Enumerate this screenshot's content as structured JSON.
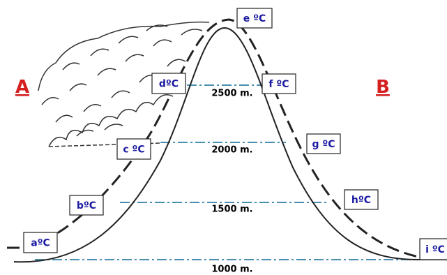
{
  "sides": {
    "left": "A",
    "right": "B"
  },
  "temperature_labels": [
    "aºC",
    "bºC",
    "c ºC",
    "dºC",
    "e ºC",
    "f ºC",
    "g ºC",
    "hºC",
    "i ºC"
  ],
  "altitude_labels": [
    "2500 m.",
    "2000 m.",
    "1500 m.",
    "1000 m."
  ]
}
